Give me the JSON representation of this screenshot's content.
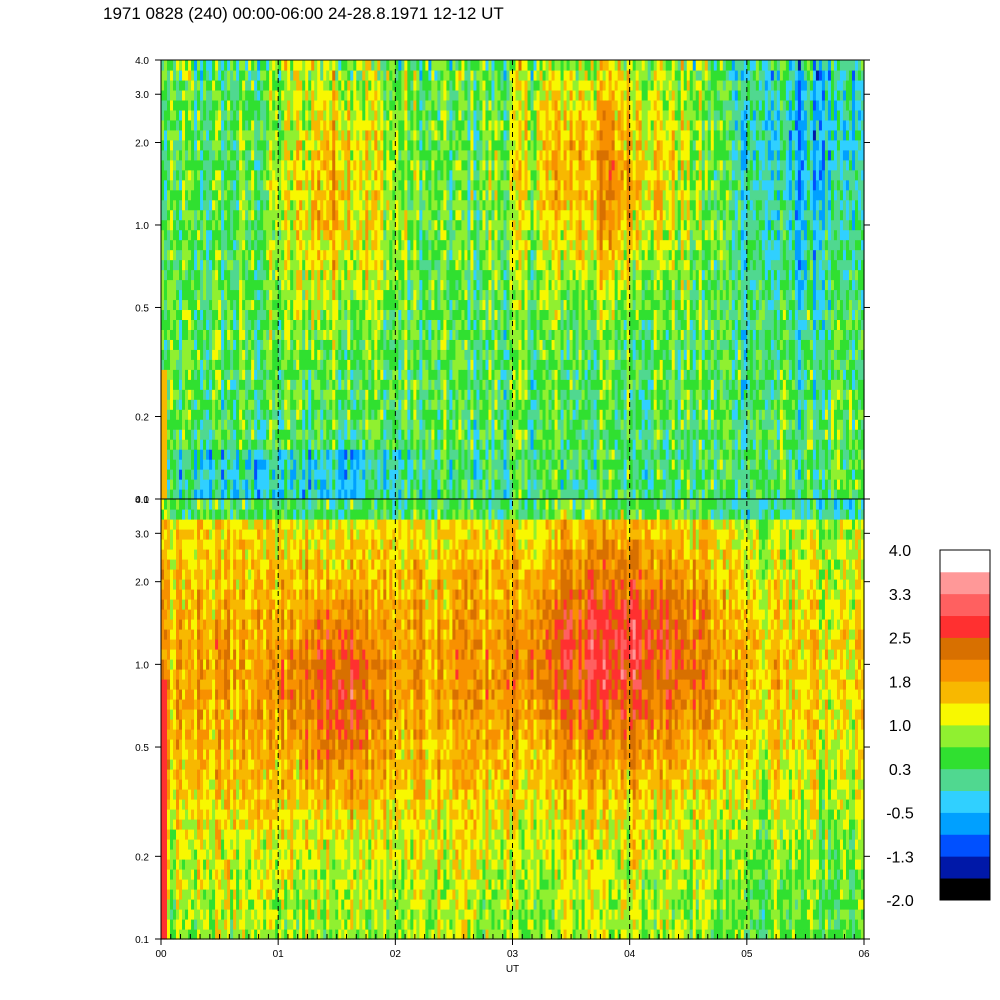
{
  "title": "1971 0828 (240) 00:00-06:00 24-28.8.1971  12-12 UT",
  "chart_data": {
    "type": "heatmap",
    "title": "1971 0828 (240) 00:00-06:00 24-28.8.1971  12-12 UT",
    "xlabel": "UT",
    "ylabel": "",
    "x_range": [
      "00",
      "06"
    ],
    "x_ticks": [
      "00",
      "01",
      "02",
      "03",
      "04",
      "05",
      "06"
    ],
    "y_scale": "log",
    "y_range": [
      0.1,
      4.0
    ],
    "y_ticks": [
      {
        "value": 0.1,
        "label": "0.1"
      },
      {
        "value": 0.2,
        "label": "0.2"
      },
      {
        "value": 0.5,
        "label": "0.5"
      },
      {
        "value": 1.0,
        "label": "1.0"
      },
      {
        "value": 2.0,
        "label": "2.0"
      },
      {
        "value": 3.0,
        "label": "3.0"
      },
      {
        "value": 4.0,
        "label": "4.0"
      }
    ],
    "panels": [
      {
        "name": "upper",
        "description_values": "predominantly green/cyan levels (about 0.3 to 1.0), orange bursts (about 1.8) near 1-2 and 3-4.5 UT above 0.5",
        "dominant_level": 0.5
      },
      {
        "name": "lower",
        "description_values": "predominantly orange/yellow levels (about 1.0 to 1.8), red bursts (about 2.5) near 1.4-4.5 UT between 0.5 and 2.0",
        "dominant_level": 1.5
      }
    ],
    "colorbar": {
      "labels": [
        "4.0",
        "3.3",
        "2.5",
        "1.8",
        "1.0",
        "0.3",
        "-0.5",
        "-1.3",
        "-2.0"
      ],
      "colors": [
        "#000000",
        "#0018a8",
        "#0050ff",
        "#00a0ff",
        "#30d0ff",
        "#50d890",
        "#30e030",
        "#90f030",
        "#f8f800",
        "#f8b800",
        "#f89000",
        "#d87000",
        "#ff3030",
        "#ff6060",
        "#ff9898",
        "#ffffff"
      ]
    },
    "dashed_vertical_lines": [
      "01",
      "02",
      "03",
      "04",
      "05"
    ]
  }
}
